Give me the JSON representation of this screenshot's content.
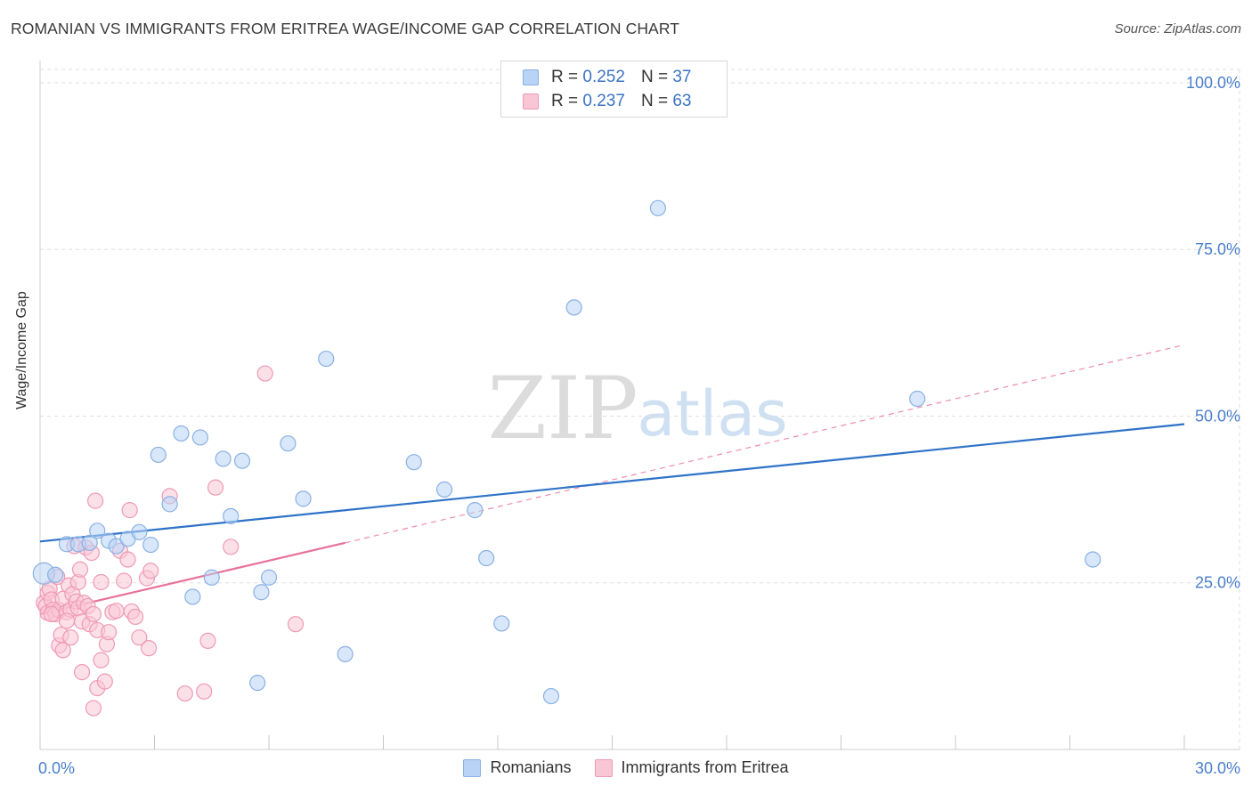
{
  "title": "ROMANIAN VS IMMIGRANTS FROM ERITREA WAGE/INCOME GAP CORRELATION CHART",
  "source": "Source: ZipAtlas.com",
  "watermark": {
    "zip": "ZIP",
    "atlas": "atlas"
  },
  "legend": {
    "r_label": "R =",
    "n_label": "N =",
    "series": [
      {
        "name": "Romanians",
        "r": "0.252",
        "n": "37",
        "fill": "#b8d3f5",
        "stroke": "#8ab1e3",
        "line": "#2e73c8"
      },
      {
        "name": "Immigrants from Eritrea",
        "r": "0.237",
        "n": "63",
        "fill": "#f9c6d5",
        "stroke": "#ee9ab5",
        "line": "#e8719a"
      }
    ]
  },
  "chart_data": {
    "type": "scatter",
    "title": "ROMANIAN VS IMMIGRANTS FROM ERITREA WAGE/INCOME GAP CORRELATION CHART",
    "xlabel": "",
    "ylabel": "Wage/Income Gap",
    "xlim": [
      0,
      30
    ],
    "ylim": [
      0,
      102
    ],
    "x_tick_labels": [
      "0.0%",
      "30.0%"
    ],
    "y_ticks": [
      25,
      50,
      75,
      100
    ],
    "y_tick_labels": [
      "25.0%",
      "50.0%",
      "75.0%",
      "100.0%"
    ],
    "grid": true,
    "series": [
      {
        "name": "Romanians",
        "r": 0.252,
        "n": 37,
        "trend": {
          "x": [
            0,
            30
          ],
          "y": [
            31.2,
            48.8
          ],
          "style": "solid"
        },
        "points": [
          [
            0.1,
            26.4
          ],
          [
            0.4,
            26.2
          ],
          [
            0.7,
            30.8
          ],
          [
            1.0,
            30.8
          ],
          [
            1.3,
            31.0
          ],
          [
            1.5,
            32.8
          ],
          [
            1.8,
            31.3
          ],
          [
            2.0,
            30.5
          ],
          [
            2.3,
            31.6
          ],
          [
            2.6,
            32.6
          ],
          [
            2.9,
            30.7
          ],
          [
            3.1,
            44.2
          ],
          [
            3.4,
            36.8
          ],
          [
            3.7,
            47.4
          ],
          [
            4.0,
            22.9
          ],
          [
            4.2,
            46.8
          ],
          [
            4.5,
            25.8
          ],
          [
            4.8,
            43.6
          ],
          [
            5.0,
            35.0
          ],
          [
            5.3,
            43.3
          ],
          [
            5.7,
            10.0
          ],
          [
            5.8,
            23.6
          ],
          [
            6.0,
            25.8
          ],
          [
            6.5,
            45.9
          ],
          [
            6.9,
            37.6
          ],
          [
            7.5,
            58.6
          ],
          [
            8.0,
            14.3
          ],
          [
            9.8,
            43.1
          ],
          [
            10.6,
            39.0
          ],
          [
            11.4,
            35.9
          ],
          [
            11.7,
            28.7
          ],
          [
            12.1,
            18.9
          ],
          [
            13.4,
            8.0
          ],
          [
            14.0,
            66.3
          ],
          [
            16.2,
            81.2
          ],
          [
            23.0,
            52.6
          ],
          [
            27.6,
            28.5
          ]
        ]
      },
      {
        "name": "Immigrants from Eritrea",
        "r": 0.237,
        "n": 63,
        "trend": {
          "x": [
            0,
            8.0
          ],
          "y": [
            20.3,
            31.0
          ],
          "style": "solid"
        },
        "trend_extended": {
          "x": [
            8.0,
            30
          ],
          "y": [
            31.0,
            60.7
          ],
          "style": "dashed"
        },
        "points": [
          [
            0.1,
            22.0
          ],
          [
            0.15,
            21.5
          ],
          [
            0.2,
            23.5
          ],
          [
            0.2,
            20.5
          ],
          [
            0.25,
            24.1
          ],
          [
            0.3,
            22.5
          ],
          [
            0.35,
            21.0
          ],
          [
            0.4,
            20.3
          ],
          [
            0.45,
            25.9
          ],
          [
            0.5,
            20.9
          ],
          [
            0.5,
            15.6
          ],
          [
            0.55,
            17.2
          ],
          [
            0.6,
            22.6
          ],
          [
            0.6,
            14.9
          ],
          [
            0.7,
            20.6
          ],
          [
            0.75,
            24.6
          ],
          [
            0.8,
            21.0
          ],
          [
            0.8,
            16.8
          ],
          [
            0.85,
            23.3
          ],
          [
            0.9,
            30.5
          ],
          [
            0.95,
            22.2
          ],
          [
            1.0,
            25.1
          ],
          [
            1.0,
            21.2
          ],
          [
            1.05,
            27.0
          ],
          [
            1.1,
            19.2
          ],
          [
            1.1,
            11.6
          ],
          [
            1.15,
            22.0
          ],
          [
            1.2,
            30.3
          ],
          [
            1.25,
            21.5
          ],
          [
            1.3,
            18.8
          ],
          [
            1.35,
            29.5
          ],
          [
            1.4,
            20.3
          ],
          [
            1.4,
            6.2
          ],
          [
            1.45,
            37.3
          ],
          [
            1.5,
            9.2
          ],
          [
            1.5,
            17.9
          ],
          [
            1.6,
            13.4
          ],
          [
            1.6,
            25.1
          ],
          [
            1.7,
            10.2
          ],
          [
            1.75,
            15.8
          ],
          [
            1.8,
            17.6
          ],
          [
            1.9,
            20.6
          ],
          [
            2.0,
            20.8
          ],
          [
            2.1,
            29.8
          ],
          [
            2.2,
            25.3
          ],
          [
            2.3,
            28.5
          ],
          [
            2.35,
            35.9
          ],
          [
            2.4,
            20.7
          ],
          [
            2.5,
            19.9
          ],
          [
            2.6,
            16.8
          ],
          [
            2.8,
            25.7
          ],
          [
            2.85,
            15.2
          ],
          [
            2.9,
            26.8
          ],
          [
            3.4,
            38.0
          ],
          [
            3.8,
            8.4
          ],
          [
            4.3,
            8.7
          ],
          [
            4.4,
            16.3
          ],
          [
            4.6,
            39.3
          ],
          [
            5.0,
            30.4
          ],
          [
            5.9,
            56.4
          ],
          [
            6.7,
            18.8
          ],
          [
            0.3,
            20.3
          ],
          [
            0.7,
            19.3
          ]
        ]
      }
    ]
  }
}
